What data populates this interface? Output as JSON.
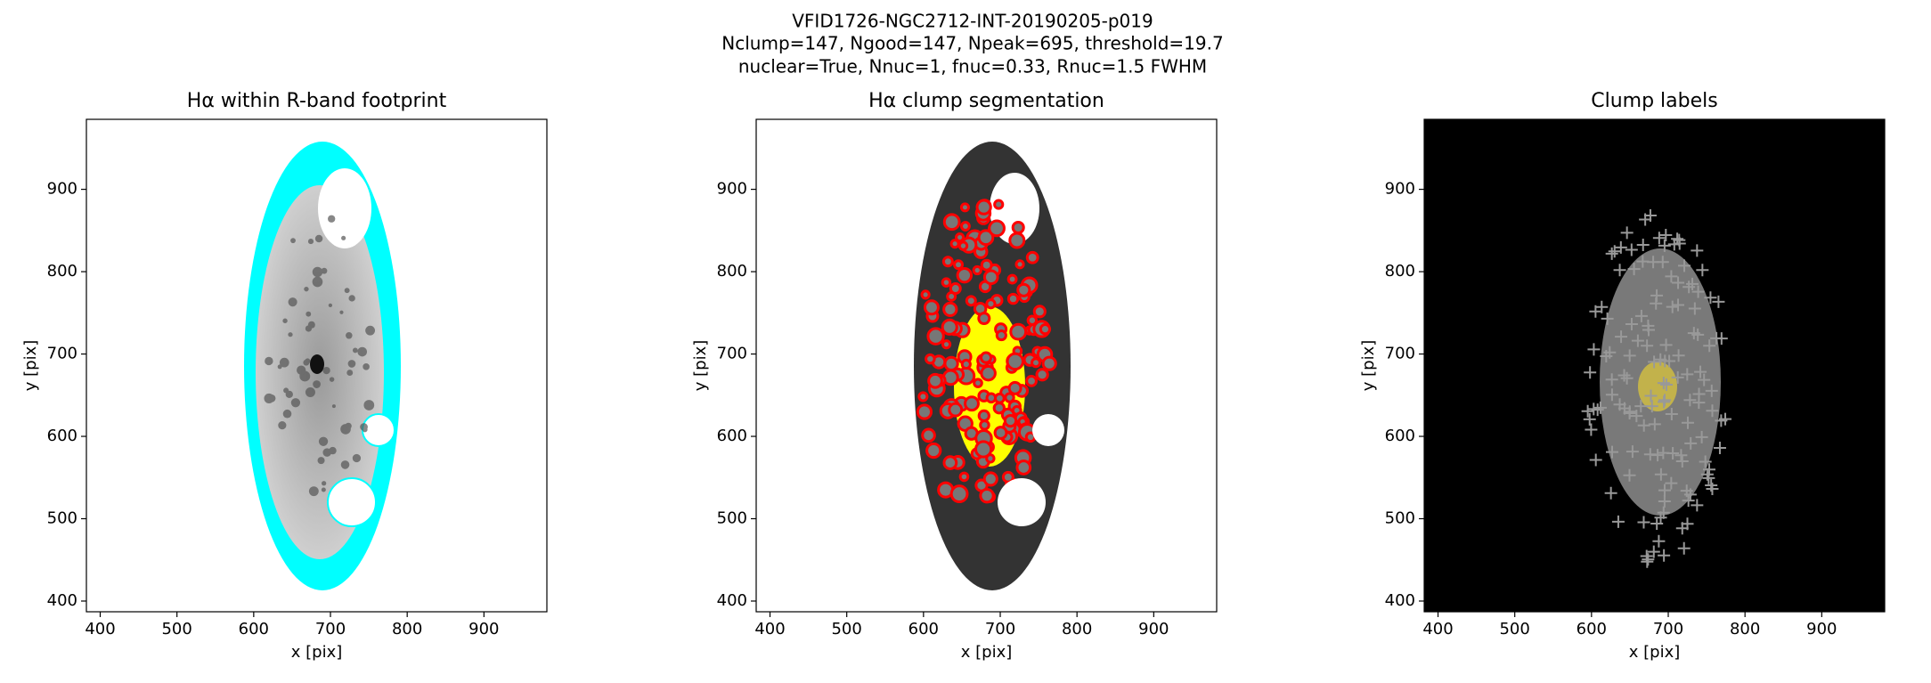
{
  "figure_title": [
    "VFID1726-NGC2712-INT-20190205-p019",
    "Nclump=147, Ngood=147, Npeak=695, threshold=19.7",
    "nuclear=True, Nnuc=1, fnuc=0.33, Rnuc=1.5 FWHM"
  ],
  "chart_data": [
    {
      "type": "image",
      "title": "Hα within R-band footprint",
      "xlabel": "x [pix]",
      "ylabel": "y [pix]",
      "xlim": [
        382,
        982
      ],
      "ylim": [
        387,
        985
      ],
      "xticks": [
        400,
        500,
        600,
        700,
        800,
        900
      ],
      "yticks": [
        400,
        500,
        600,
        700,
        800,
        900
      ]
    },
    {
      "type": "image",
      "title": "Hα clump segmentation",
      "xlabel": "x [pix]",
      "ylabel": "y [pix]",
      "xlim": [
        382,
        982
      ],
      "ylim": [
        387,
        985
      ],
      "xticks": [
        400,
        500,
        600,
        700,
        800,
        900
      ],
      "yticks": [
        400,
        500,
        600,
        700,
        800,
        900
      ]
    },
    {
      "type": "image",
      "title": "Clump labels",
      "xlabel": "x [pix]",
      "ylabel": "y [pix]",
      "xlim": [
        382,
        982
      ],
      "ylim": [
        387,
        985
      ],
      "xticks": [
        400,
        500,
        600,
        700,
        800,
        900
      ],
      "yticks": [
        400,
        500,
        600,
        700,
        800,
        900
      ]
    }
  ]
}
